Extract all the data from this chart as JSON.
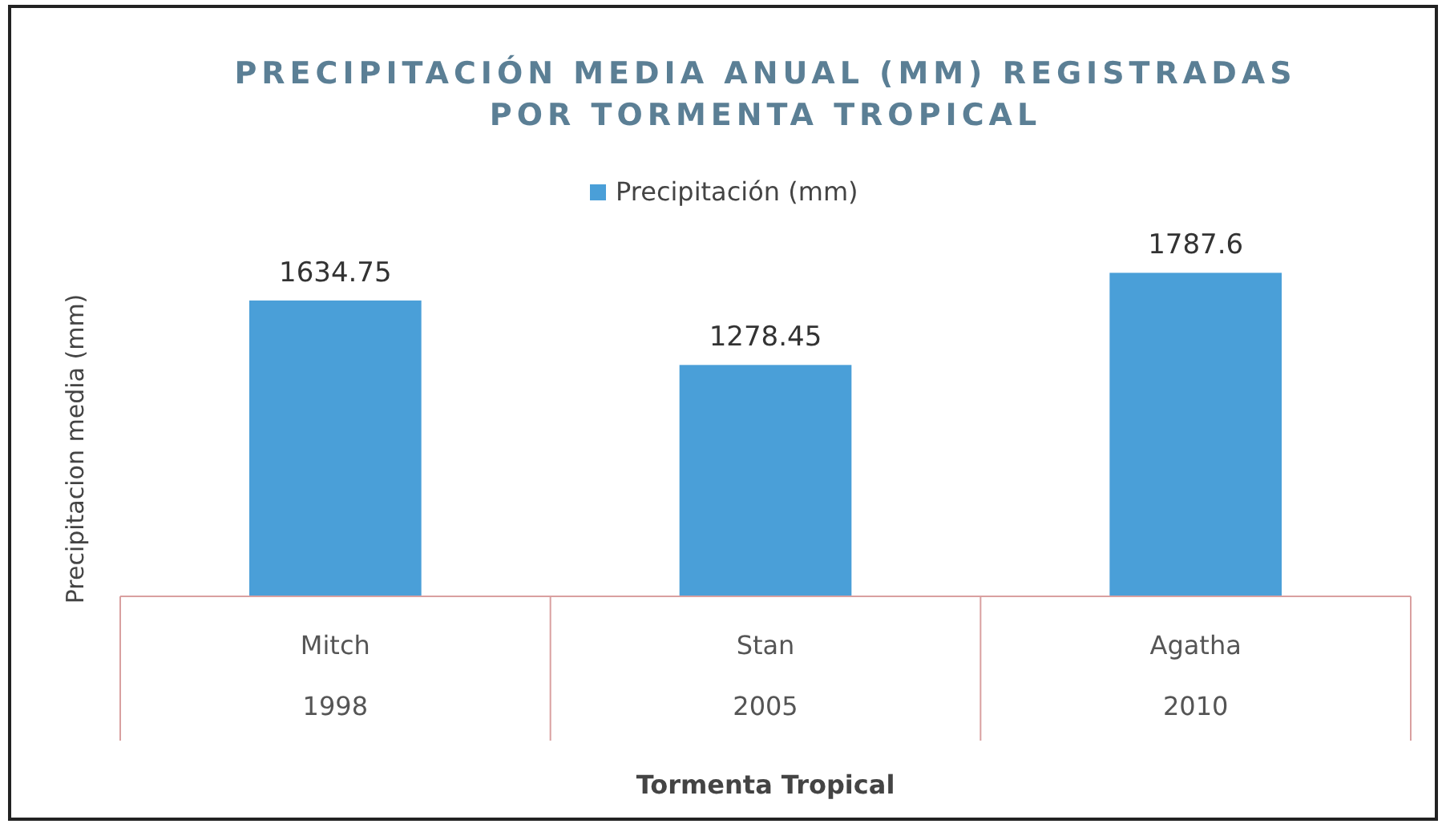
{
  "chart_data": {
    "type": "bar",
    "title": "PRECIPITACIÓN MEDIA ANUAL (MM) REGISTRADAS\nPOR TORMENTA TROPICAL",
    "xlabel": "Tormenta Tropical",
    "ylabel": "Precipitacion media (mm)",
    "categories": [
      "Mitch\n1998",
      "Stan\n2005",
      "Agatha\n2010"
    ],
    "series": [
      {
        "name": "Precipitación (mm)",
        "color": "#4a9fd8",
        "values": [
          1634.75,
          1278.45,
          1787.6
        ]
      }
    ],
    "data_labels": true,
    "legend": "top",
    "grid": false
  }
}
